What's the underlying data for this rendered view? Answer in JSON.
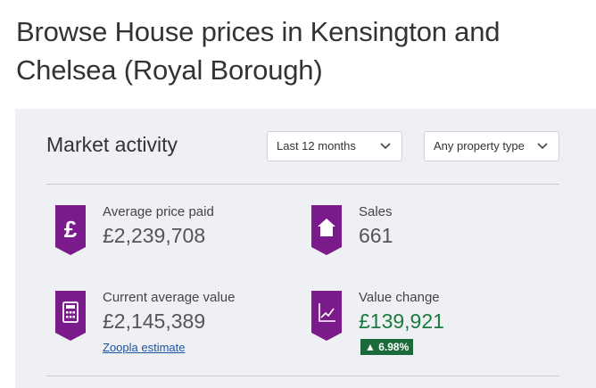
{
  "page": {
    "title": "Browse House prices in Kensington and Chelsea (Royal Borough)"
  },
  "market_activity": {
    "title": "Market activity",
    "filters": {
      "period": "Last 12 months",
      "property_type": "Any property type"
    },
    "stats": {
      "average_price_paid": {
        "label": "Average price paid",
        "value": "£2,239,708",
        "icon": "pound-icon"
      },
      "sales": {
        "label": "Sales",
        "value": "661",
        "icon": "house-icon"
      },
      "current_average_value": {
        "label": "Current average value",
        "value": "£2,145,389",
        "icon": "calculator-icon",
        "link": "Zoopla estimate"
      },
      "value_change": {
        "label": "Value change",
        "value": "£139,921",
        "icon": "line-chart-icon",
        "change": "▲ 6.98%"
      }
    }
  },
  "colors": {
    "brand_purple": "#7b1a8a",
    "positive_green": "#1b7a3e",
    "badge_green": "#1b6b3a",
    "link_blue": "#1a54a3",
    "panel_bg": "#eff0f3"
  }
}
